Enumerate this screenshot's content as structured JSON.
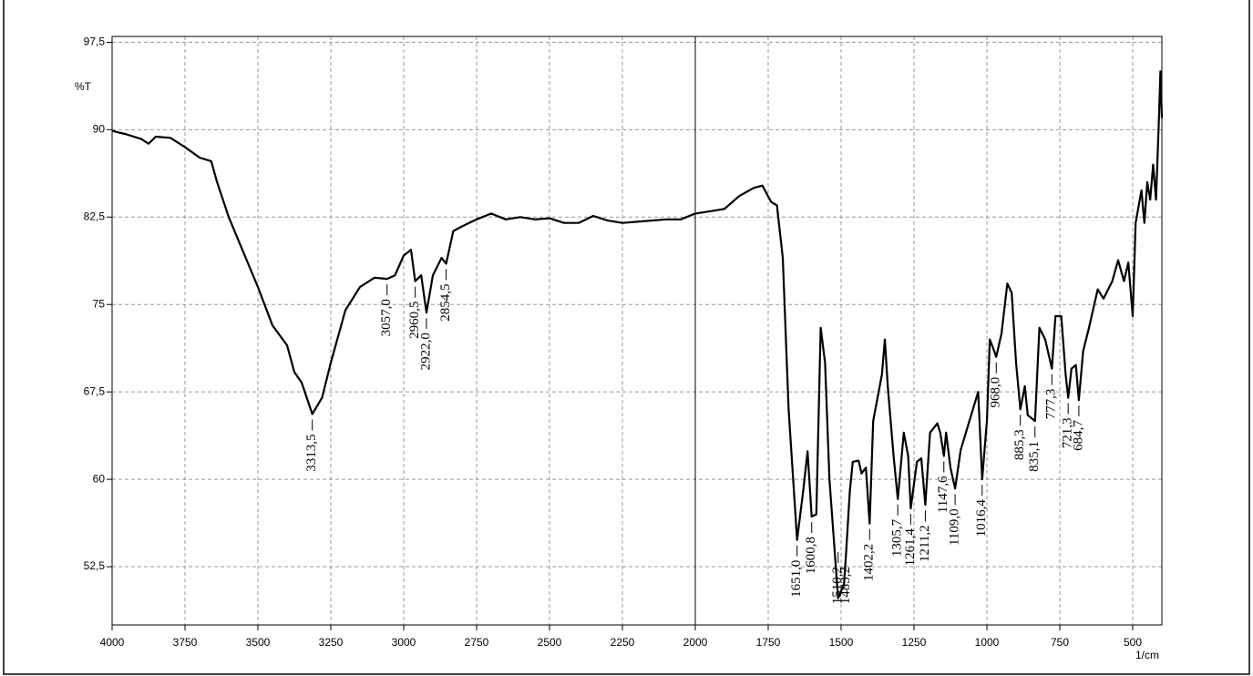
{
  "chart_data": {
    "type": "line",
    "ylabel": "%T",
    "xlabel": "1/cm",
    "color": "#000000",
    "grid": true,
    "vline": 2000,
    "xlim": [
      4000,
      400
    ],
    "ylim": [
      47.5,
      98
    ],
    "xticks": [
      4000,
      3750,
      3500,
      3250,
      3000,
      2750,
      2500,
      2250,
      2000,
      1750,
      1500,
      1250,
      1000,
      750,
      500
    ],
    "yticks": [
      {
        "value": 52.5,
        "label": "52,5"
      },
      60,
      {
        "value": 67.5,
        "label": "67,5"
      },
      75,
      {
        "value": 82.5,
        "label": "82,5"
      },
      90,
      {
        "value": 97.5,
        "label": "97,5"
      }
    ],
    "x": [
      4000,
      3950,
      3900,
      3875,
      3850,
      3800,
      3750,
      3700,
      3660,
      3640,
      3600,
      3550,
      3500,
      3450,
      3400,
      3375,
      3350,
      3313.5,
      3280,
      3250,
      3200,
      3150,
      3100,
      3057,
      3030,
      3000,
      2975,
      2960.5,
      2940,
      2922,
      2900,
      2870,
      2854.5,
      2830,
      2800,
      2750,
      2700,
      2650,
      2600,
      2550,
      2500,
      2450,
      2400,
      2350,
      2300,
      2250,
      2200,
      2100,
      2050,
      2000,
      1950,
      1900,
      1850,
      1800,
      1770,
      1740,
      1720,
      1700,
      1680,
      1651,
      1630,
      1615,
      1600.8,
      1585,
      1570,
      1555,
      1540,
      1510.2,
      1490,
      1483.2,
      1470,
      1460,
      1440,
      1430,
      1415,
      1402.2,
      1390,
      1360,
      1350,
      1340,
      1320,
      1305.7,
      1285,
      1270,
      1261.4,
      1240,
      1225,
      1211.2,
      1195,
      1170,
      1160,
      1147.6,
      1140,
      1125,
      1109,
      1090,
      1060,
      1030,
      1016.4,
      1000,
      990,
      975,
      968,
      950,
      930,
      915,
      900,
      885.3,
      870,
      860,
      835.1,
      820,
      800,
      777.3,
      765,
      745,
      730,
      721.3,
      710,
      695,
      684.7,
      670,
      650,
      620,
      600,
      570,
      550,
      530,
      515,
      500,
      490,
      470,
      460,
      450,
      440,
      430,
      420,
      410,
      405,
      400
    ],
    "values": [
      89.9,
      89.6,
      89.2,
      88.8,
      89.4,
      89.3,
      88.5,
      87.6,
      87.3,
      85.5,
      82.5,
      79.5,
      76.5,
      73.2,
      71.5,
      69.2,
      68.3,
      65.6,
      67,
      70,
      74.5,
      76.5,
      77.3,
      77.2,
      77.5,
      79.2,
      79.7,
      77,
      77.5,
      74.3,
      77.5,
      79,
      78.5,
      81.3,
      81.7,
      82.3,
      82.8,
      82.3,
      82.5,
      82.3,
      82.4,
      82,
      82,
      82.6,
      82.2,
      82,
      82.1,
      82.3,
      82.3,
      82.8,
      83,
      83.2,
      84.3,
      85,
      85.2,
      83.8,
      83.5,
      79,
      66,
      54.8,
      59,
      62.4,
      56.8,
      57,
      73,
      70,
      60,
      49.8,
      51,
      53.6,
      59,
      61.5,
      61.6,
      60.5,
      61,
      56.2,
      65,
      69,
      72,
      68,
      62,
      58.3,
      64,
      62,
      57.5,
      61.5,
      61.8,
      57.8,
      64,
      64.8,
      64,
      62,
      64,
      61,
      59.2,
      62.5,
      65,
      67.5,
      60,
      65,
      72,
      71,
      70.5,
      72.5,
      76.8,
      76,
      70,
      66,
      68,
      65.5,
      65,
      73,
      72,
      69.5,
      74,
      74,
      69,
      67,
      69.5,
      69.8,
      66.8,
      71,
      73,
      76.3,
      75.5,
      77,
      78.8,
      77,
      78.6,
      74,
      82,
      84.8,
      82,
      85.5,
      84,
      87,
      84,
      91,
      95,
      91
    ],
    "annotations": [
      {
        "value": 3313.5,
        "label": "3313,5"
      },
      {
        "value": 3057.0,
        "label": "3057,0"
      },
      {
        "value": 2960.5,
        "label": "2960,5"
      },
      {
        "value": 2922.0,
        "label": "2922,0"
      },
      {
        "value": 2854.5,
        "label": "2854,5"
      },
      {
        "value": 1651.0,
        "label": "1651,0"
      },
      {
        "value": 1600.8,
        "label": "1600,8"
      },
      {
        "value": 1510.2,
        "label": "1510,2"
      },
      {
        "value": 1483.2,
        "label": "1483,2"
      },
      {
        "value": 1402.2,
        "label": "1402,2"
      },
      {
        "value": 1305.7,
        "label": "1305,7"
      },
      {
        "value": 1261.4,
        "label": "1261,4"
      },
      {
        "value": 1211.2,
        "label": "1211,2"
      },
      {
        "value": 1147.6,
        "label": "1147,6"
      },
      {
        "value": 1109.0,
        "label": "1109,0"
      },
      {
        "value": 1016.4,
        "label": "1016,4"
      },
      {
        "value": 968.0,
        "label": "968,0"
      },
      {
        "value": 885.3,
        "label": "885,3"
      },
      {
        "value": 835.1,
        "label": "835,1"
      },
      {
        "value": 777.3,
        "label": "777,3"
      },
      {
        "value": 721.3,
        "label": "721,3"
      },
      {
        "value": 684.7,
        "label": "684,7"
      }
    ]
  }
}
